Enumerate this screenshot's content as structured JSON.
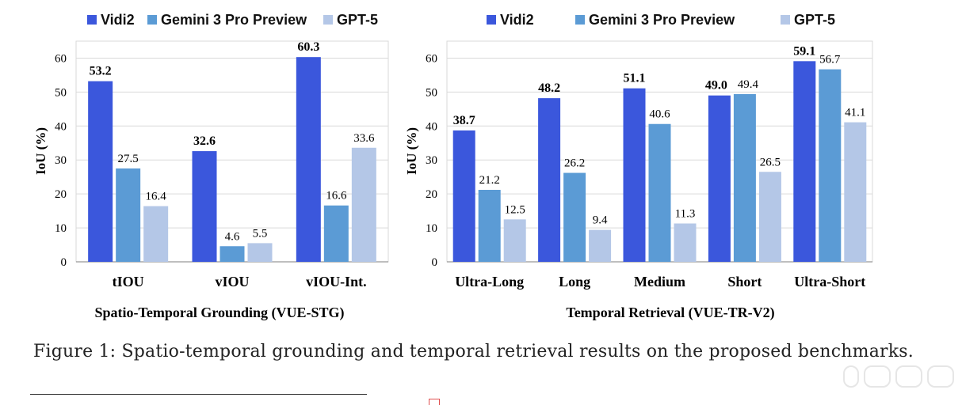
{
  "colors": {
    "Vidi2": "#3b57dc",
    "Gemini 3 Pro Preview": "#5b9bd5",
    "GPT-5": "#b4c7e7",
    "grid": "#d9d9d9",
    "axis": "#7f7f7f"
  },
  "chart_data": [
    {
      "type": "bar",
      "title": "Spatio-Temporal Grounding (VUE-STG)",
      "ylabel": "IoU (%)",
      "xlabel": "",
      "ylim": [
        0,
        65
      ],
      "yticks": [
        0,
        10,
        20,
        30,
        40,
        50,
        60
      ],
      "grid": true,
      "legend": "top",
      "categories": [
        "tIOU",
        "vIOU",
        "vIOU-Int."
      ],
      "series": [
        {
          "name": "Vidi2",
          "values": [
            53.2,
            32.6,
            60.3
          ]
        },
        {
          "name": "Gemini 3 Pro Preview",
          "values": [
            27.5,
            4.6,
            16.6
          ]
        },
        {
          "name": "GPT-5",
          "values": [
            16.4,
            5.5,
            33.6
          ]
        }
      ]
    },
    {
      "type": "bar",
      "title": "Temporal Retrieval (VUE-TR-V2)",
      "ylabel": "IoU (%)",
      "xlabel": "",
      "ylim": [
        0,
        65
      ],
      "yticks": [
        0,
        10,
        20,
        30,
        40,
        50,
        60
      ],
      "grid": true,
      "legend": "top",
      "categories": [
        "Ultra-Long",
        "Long",
        "Medium",
        "Short",
        "Ultra-Short"
      ],
      "series": [
        {
          "name": "Vidi2",
          "values": [
            38.7,
            48.2,
            51.1,
            49.0,
            59.1
          ]
        },
        {
          "name": "Gemini 3 Pro Preview",
          "values": [
            21.2,
            26.2,
            40.6,
            49.4,
            56.7
          ]
        },
        {
          "name": "GPT-5",
          "values": [
            12.5,
            9.4,
            11.3,
            26.5,
            41.1
          ]
        }
      ]
    }
  ],
  "caption": "Figure 1: Spatio-temporal grounding and temporal retrieval results on the proposed benchmarks."
}
